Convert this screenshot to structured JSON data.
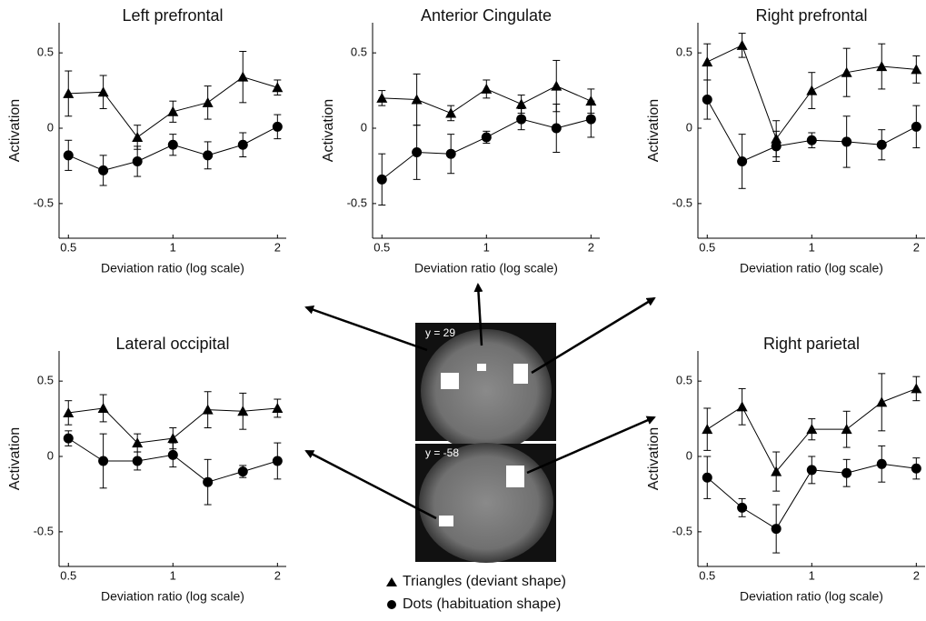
{
  "chart_data": [
    {
      "type": "line",
      "title": "Left prefrontal",
      "xlabel": "Deviation ratio (log scale)",
      "ylabel": "Activation",
      "xlog": true,
      "x": [
        0.5,
        0.63,
        0.79,
        1,
        1.26,
        1.59,
        2
      ],
      "xlim": [
        0.47,
        2.12
      ],
      "xticks": [
        0.5,
        1,
        2
      ],
      "ylim": [
        -0.73,
        0.7
      ],
      "yticks": [
        0.5,
        0,
        -0.5
      ],
      "series": [
        {
          "name": "Triangles (deviant shape)",
          "marker": "triangle",
          "color": "#000000",
          "values": [
            0.23,
            0.24,
            -0.06,
            0.11,
            0.17,
            0.34,
            0.27
          ],
          "errors": [
            0.15,
            0.11,
            0.08,
            0.07,
            0.11,
            0.17,
            0.05
          ]
        },
        {
          "name": "Dots (habituation shape)",
          "marker": "dot",
          "color": "#000000",
          "values": [
            -0.18,
            -0.28,
            -0.22,
            -0.11,
            -0.18,
            -0.11,
            0.01
          ],
          "errors": [
            0.1,
            0.1,
            0.1,
            0.07,
            0.09,
            0.08,
            0.08
          ]
        }
      ]
    },
    {
      "type": "line",
      "title": "Anterior Cingulate",
      "xlabel": "Deviation ratio (log scale)",
      "ylabel": "Activation",
      "xlog": true,
      "x": [
        0.5,
        0.63,
        0.79,
        1,
        1.26,
        1.59,
        2
      ],
      "xlim": [
        0.47,
        2.12
      ],
      "xticks": [
        0.5,
        1,
        2
      ],
      "ylim": [
        -0.73,
        0.7
      ],
      "yticks": [
        0.5,
        0,
        -0.5
      ],
      "series": [
        {
          "marker": "triangle",
          "color": "#000000",
          "values": [
            0.2,
            0.19,
            0.1,
            0.26,
            0.16,
            0.28,
            0.18
          ],
          "errors": [
            0.05,
            0.17,
            0.05,
            0.06,
            0.06,
            0.17,
            0.08
          ]
        },
        {
          "marker": "dot",
          "color": "#000000",
          "values": [
            -0.34,
            -0.16,
            -0.17,
            -0.06,
            0.06,
            0.0,
            0.06
          ],
          "errors": [
            0.17,
            0.18,
            0.13,
            0.04,
            0.07,
            0.16,
            0.12
          ]
        }
      ]
    },
    {
      "type": "line",
      "title": "Right prefrontal",
      "xlabel": "Deviation ratio (log scale)",
      "ylabel": "Activation",
      "xlog": true,
      "x": [
        0.5,
        0.63,
        0.79,
        1,
        1.26,
        1.59,
        2
      ],
      "xlim": [
        0.47,
        2.12
      ],
      "xticks": [
        0.5,
        1,
        2
      ],
      "ylim": [
        -0.73,
        0.7
      ],
      "yticks": [
        0.5,
        0,
        -0.5
      ],
      "series": [
        {
          "marker": "triangle",
          "color": "#000000",
          "values": [
            0.44,
            0.55,
            -0.07,
            0.25,
            0.37,
            0.41,
            0.39
          ],
          "errors": [
            0.12,
            0.08,
            0.12,
            0.12,
            0.16,
            0.15,
            0.09
          ]
        },
        {
          "marker": "dot",
          "color": "#000000",
          "values": [
            0.19,
            -0.22,
            -0.12,
            -0.08,
            -0.09,
            -0.11,
            0.01
          ],
          "errors": [
            0.13,
            0.18,
            0.1,
            0.05,
            0.17,
            0.1,
            0.14
          ]
        }
      ]
    },
    {
      "type": "line",
      "title": "Lateral occipital",
      "xlabel": "Deviation ratio (log scale)",
      "ylabel": "Activation",
      "xlog": true,
      "x": [
        0.5,
        0.63,
        0.79,
        1,
        1.26,
        1.59,
        2
      ],
      "xlim": [
        0.47,
        2.12
      ],
      "xticks": [
        0.5,
        1,
        2
      ],
      "ylim": [
        -0.73,
        0.7
      ],
      "yticks": [
        0.5,
        0,
        -0.5
      ],
      "series": [
        {
          "marker": "triangle",
          "color": "#000000",
          "values": [
            0.29,
            0.32,
            0.09,
            0.12,
            0.31,
            0.3,
            0.32
          ],
          "errors": [
            0.08,
            0.09,
            0.06,
            0.07,
            0.12,
            0.12,
            0.06
          ]
        },
        {
          "marker": "dot",
          "color": "#000000",
          "values": [
            0.12,
            -0.03,
            -0.03,
            0.01,
            -0.17,
            -0.1,
            -0.03
          ],
          "errors": [
            0.05,
            0.18,
            0.06,
            0.08,
            0.15,
            0.04,
            0.12
          ]
        }
      ]
    },
    {
      "type": "line",
      "title": "Right parietal",
      "xlabel": "Deviation ratio (log scale)",
      "ylabel": "Activation",
      "xlog": true,
      "x": [
        0.5,
        0.63,
        0.79,
        1,
        1.26,
        1.59,
        2
      ],
      "xlim": [
        0.47,
        2.12
      ],
      "xticks": [
        0.5,
        1,
        2
      ],
      "ylim": [
        -0.73,
        0.7
      ],
      "yticks": [
        0.5,
        0,
        -0.5
      ],
      "series": [
        {
          "marker": "triangle",
          "color": "#000000",
          "values": [
            0.18,
            0.33,
            -0.1,
            0.18,
            0.18,
            0.36,
            0.45
          ],
          "errors": [
            0.14,
            0.12,
            0.13,
            0.07,
            0.12,
            0.19,
            0.08
          ]
        },
        {
          "marker": "dot",
          "color": "#000000",
          "values": [
            -0.14,
            -0.34,
            -0.48,
            -0.09,
            -0.11,
            -0.05,
            -0.08
          ],
          "errors": [
            0.14,
            0.06,
            0.16,
            0.09,
            0.09,
            0.12,
            0.07
          ]
        }
      ]
    }
  ],
  "images": [
    {
      "label": "y = 29"
    },
    {
      "label": "y = -58"
    }
  ]
}
